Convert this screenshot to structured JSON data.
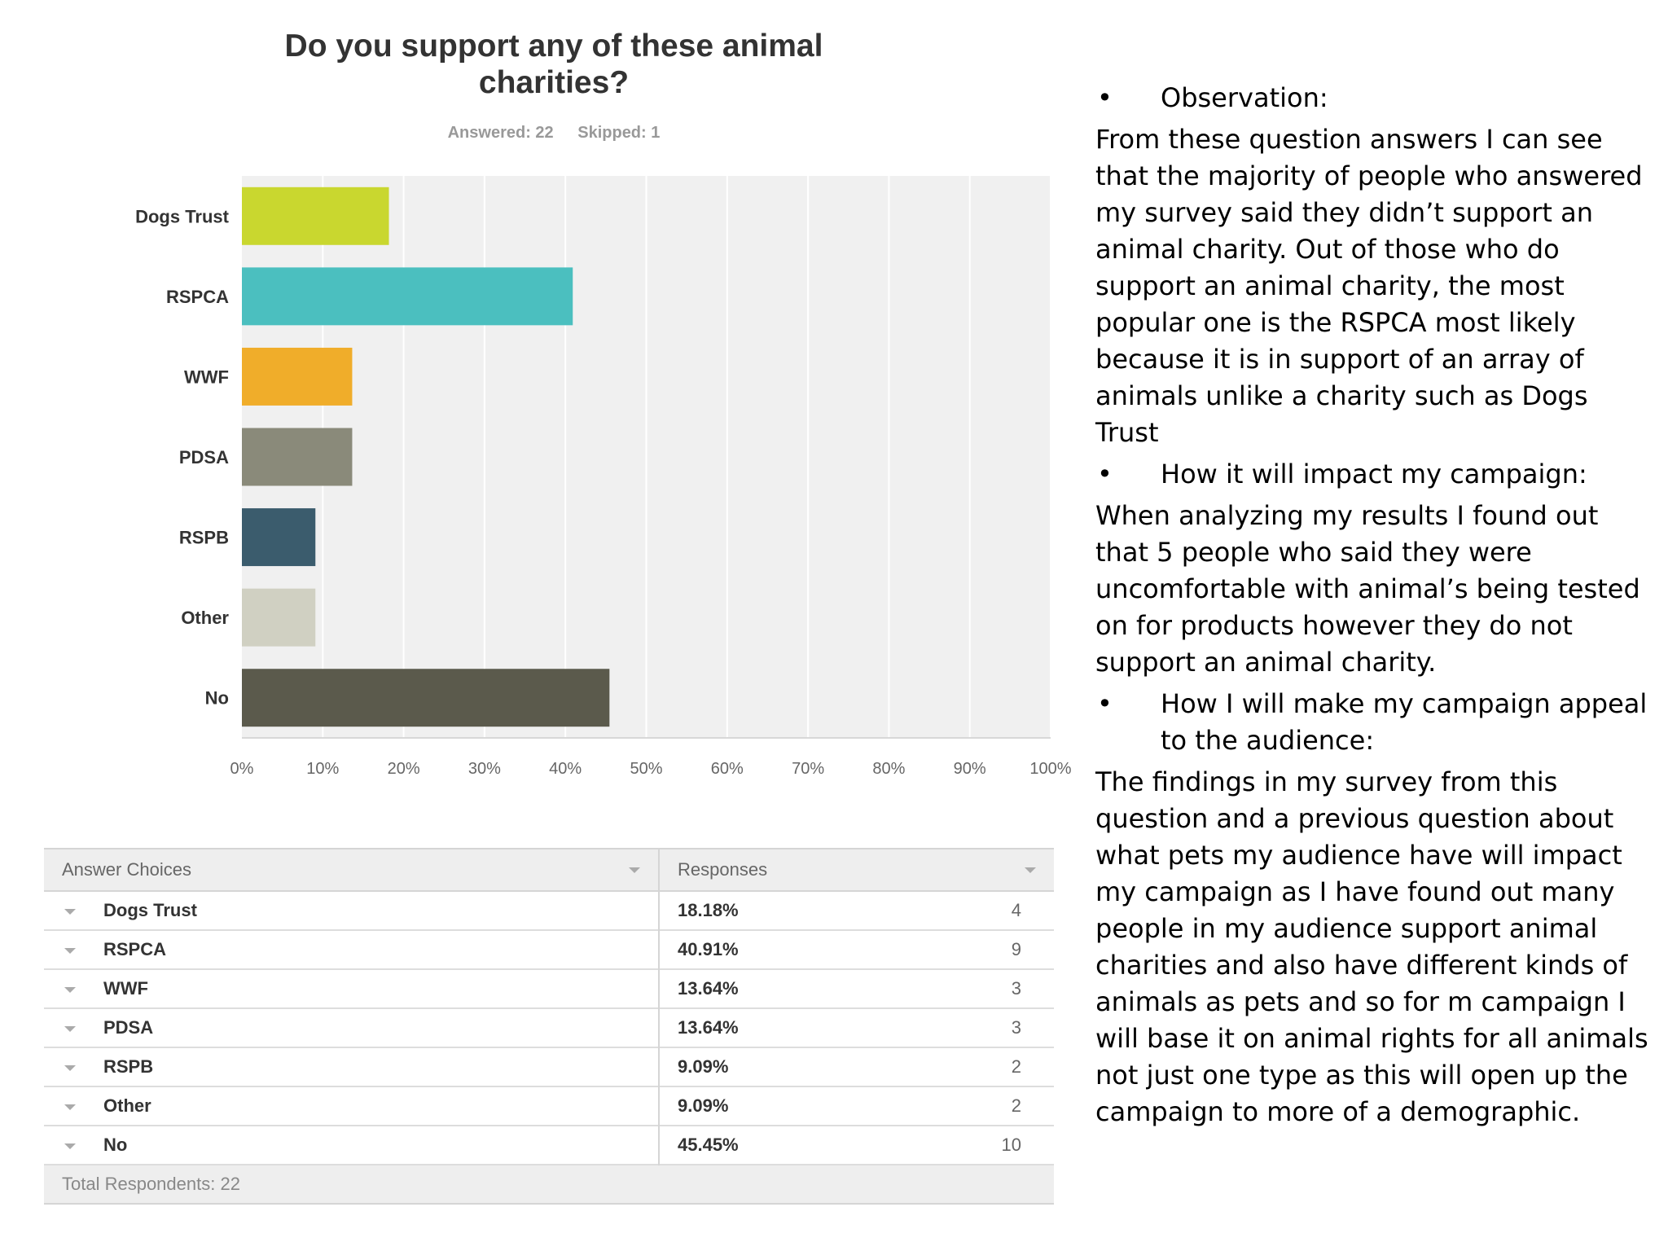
{
  "chart_data": {
    "type": "bar",
    "orientation": "horizontal",
    "title": "Do you support any of these animal charities?",
    "answered_label": "Answered: 22",
    "skipped_label": "Skipped: 1",
    "categories": [
      "Dogs Trust",
      "RSPCA",
      "WWF",
      "PDSA",
      "RSPB",
      "Other",
      "No"
    ],
    "values": [
      18.18,
      40.91,
      13.64,
      13.64,
      9.09,
      9.09,
      45.45
    ],
    "colors": [
      "#c9d72f",
      "#4bbfbf",
      "#f0ad2a",
      "#8a8a7a",
      "#3b5c6d",
      "#d0d0c2",
      "#5b5a4c"
    ],
    "xlim": [
      0,
      100
    ],
    "x_ticks": [
      "0%",
      "10%",
      "20%",
      "30%",
      "40%",
      "50%",
      "60%",
      "70%",
      "80%",
      "90%",
      "100%"
    ],
    "grid": true,
    "xlabel": "",
    "ylabel": ""
  },
  "table": {
    "header_choices": "Answer Choices",
    "header_responses": "Responses",
    "rows": [
      {
        "choice": "Dogs Trust",
        "percent": "18.18%",
        "count": "4"
      },
      {
        "choice": "RSPCA",
        "percent": "40.91%",
        "count": "9"
      },
      {
        "choice": "WWF",
        "percent": "13.64%",
        "count": "3"
      },
      {
        "choice": "PDSA",
        "percent": "13.64%",
        "count": "3"
      },
      {
        "choice": "RSPB",
        "percent": "9.09%",
        "count": "2"
      },
      {
        "choice": "Other",
        "percent": "9.09%",
        "count": "2"
      },
      {
        "choice": "No",
        "percent": "45.45%",
        "count": "10"
      }
    ],
    "footer": "Total Respondents: 22"
  },
  "notes": {
    "bullet1": "Observation:",
    "para1": "From these question answers I can see that the majority of people who answered my survey said they didn’t support an animal charity. Out of those who do support an animal charity, the most popular one is the RSPCA most likely because it is in support of an array of animals unlike a charity such as Dogs Trust",
    "bullet2": "How it will impact my campaign:",
    "para2": "When analyzing my results I found out that 5 people who said they were uncomfortable with animal’s being tested on for products however they do not support an animal charity.",
    "bullet3": "How I will make my campaign appeal to the audience:",
    "para3": "The findings in my survey from this question and a previous question about what pets my audience have will impact my campaign as I have found out many people in my audience support animal charities and also have different kinds of animals as pets and so for m campaign I will base it on animal rights for all animals not just one type as this will open up the campaign to more of a demographic.",
    "bullet_symbol": "•"
  }
}
